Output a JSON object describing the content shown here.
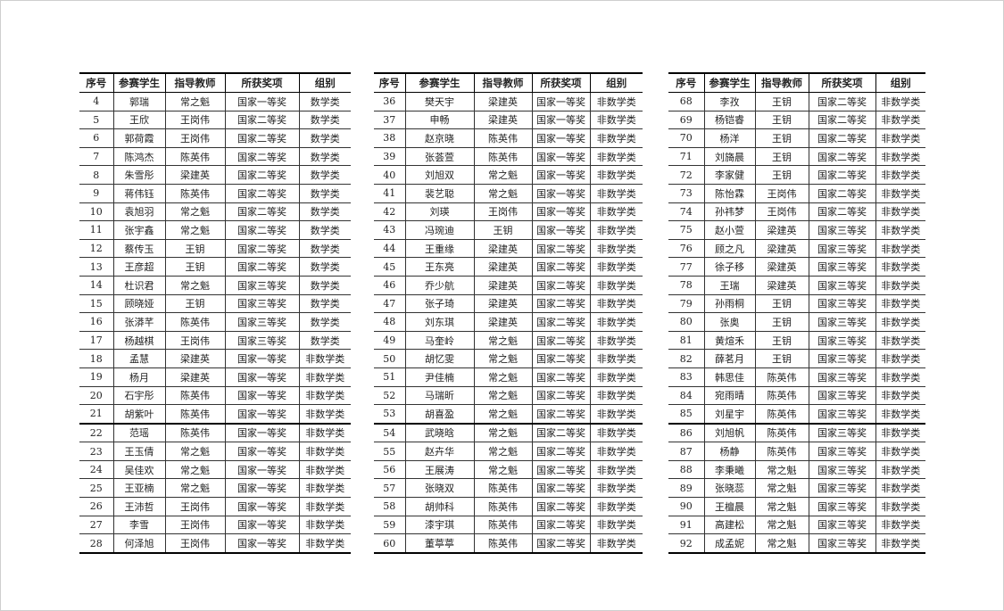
{
  "headers": [
    "序号",
    "参赛学生",
    "指导教师",
    "所获奖项",
    "组别"
  ],
  "tables": [
    {
      "rows": [
        [
          "4",
          "郭瑞",
          "常之魁",
          "国家一等奖",
          "数学类"
        ],
        [
          "5",
          "王欣",
          "王岗伟",
          "国家二等奖",
          "数学类"
        ],
        [
          "6",
          "郭荷霞",
          "王岗伟",
          "国家二等奖",
          "数学类"
        ],
        [
          "7",
          "陈鸿杰",
          "陈英伟",
          "国家二等奖",
          "数学类"
        ],
        [
          "8",
          "朱雪彤",
          "梁建英",
          "国家二等奖",
          "数学类"
        ],
        [
          "9",
          "蒋伟钰",
          "陈英伟",
          "国家二等奖",
          "数学类"
        ],
        [
          "10",
          "袁旭羽",
          "常之魁",
          "国家二等奖",
          "数学类"
        ],
        [
          "11",
          "张宇鑫",
          "常之魁",
          "国家二等奖",
          "数学类"
        ],
        [
          "12",
          "蔡传玉",
          "王钥",
          "国家二等奖",
          "数学类"
        ],
        [
          "13",
          "王彦超",
          "王钥",
          "国家二等奖",
          "数学类"
        ],
        [
          "14",
          "杜识君",
          "常之魁",
          "国家三等奖",
          "数学类"
        ],
        [
          "15",
          "顾晓娅",
          "王钥",
          "国家三等奖",
          "数学类"
        ],
        [
          "16",
          "张漭芊",
          "陈英伟",
          "国家三等奖",
          "数学类"
        ],
        [
          "17",
          "杨越棋",
          "王岗伟",
          "国家三等奖",
          "数学类"
        ],
        [
          "18",
          "孟慧",
          "梁建英",
          "国家一等奖",
          "非数学类"
        ],
        [
          "19",
          "杨月",
          "梁建英",
          "国家一等奖",
          "非数学类"
        ],
        [
          "20",
          "石宇彤",
          "陈英伟",
          "国家一等奖",
          "非数学类"
        ],
        [
          "21",
          "胡紫叶",
          "陈英伟",
          "国家一等奖",
          "非数学类"
        ],
        [
          "22",
          "范瑶",
          "陈英伟",
          "国家一等奖",
          "非数学类"
        ],
        [
          "23",
          "王玉倩",
          "常之魁",
          "国家一等奖",
          "非数学类"
        ],
        [
          "24",
          "吴佳欢",
          "常之魁",
          "国家一等奖",
          "非数学类"
        ],
        [
          "25",
          "王亚楠",
          "常之魁",
          "国家一等奖",
          "非数学类"
        ],
        [
          "26",
          "王沛哲",
          "王岗伟",
          "国家一等奖",
          "非数学类"
        ],
        [
          "27",
          "李雪",
          "王岗伟",
          "国家一等奖",
          "非数学类"
        ],
        [
          "28",
          "何泽旭",
          "王岗伟",
          "国家一等奖",
          "非数学类"
        ]
      ]
    },
    {
      "rows": [
        [
          "36",
          "樊天宇",
          "梁建英",
          "国家一等奖",
          "非数学类"
        ],
        [
          "37",
          "申畅",
          "梁建英",
          "国家一等奖",
          "非数学类"
        ],
        [
          "38",
          "赵京晓",
          "陈英伟",
          "国家一等奖",
          "非数学类"
        ],
        [
          "39",
          "张荟萱",
          "陈英伟",
          "国家一等奖",
          "非数学类"
        ],
        [
          "40",
          "刘旭双",
          "常之魁",
          "国家一等奖",
          "非数学类"
        ],
        [
          "41",
          "裴艺聪",
          "常之魁",
          "国家一等奖",
          "非数学类"
        ],
        [
          "42",
          "刘瑛",
          "王岗伟",
          "国家一等奖",
          "非数学类"
        ],
        [
          "43",
          "冯琬迪",
          "王钥",
          "国家一等奖",
          "非数学类"
        ],
        [
          "44",
          "王重缘",
          "梁建英",
          "国家二等奖",
          "非数学类"
        ],
        [
          "45",
          "王东亮",
          "梁建英",
          "国家二等奖",
          "非数学类"
        ],
        [
          "46",
          "乔少航",
          "梁建英",
          "国家二等奖",
          "非数学类"
        ],
        [
          "47",
          "张子琦",
          "梁建英",
          "国家二等奖",
          "非数学类"
        ],
        [
          "48",
          "刘东琪",
          "梁建英",
          "国家二等奖",
          "非数学类"
        ],
        [
          "49",
          "马奎岭",
          "常之魁",
          "国家二等奖",
          "非数学类"
        ],
        [
          "50",
          "胡忆雯",
          "常之魁",
          "国家二等奖",
          "非数学类"
        ],
        [
          "51",
          "尹佳楠",
          "常之魁",
          "国家二等奖",
          "非数学类"
        ],
        [
          "52",
          "马瑞昕",
          "常之魁",
          "国家二等奖",
          "非数学类"
        ],
        [
          "53",
          "胡喜盈",
          "常之魁",
          "国家二等奖",
          "非数学类"
        ],
        [
          "54",
          "武晓晗",
          "常之魁",
          "国家二等奖",
          "非数学类"
        ],
        [
          "55",
          "赵卉华",
          "常之魁",
          "国家二等奖",
          "非数学类"
        ],
        [
          "56",
          "王展涛",
          "常之魁",
          "国家二等奖",
          "非数学类"
        ],
        [
          "57",
          "张晓双",
          "陈英伟",
          "国家二等奖",
          "非数学类"
        ],
        [
          "58",
          "胡帅科",
          "陈英伟",
          "国家二等奖",
          "非数学类"
        ],
        [
          "59",
          "漆宇琪",
          "陈英伟",
          "国家二等奖",
          "非数学类"
        ],
        [
          "60",
          "董葶葶",
          "陈英伟",
          "国家二等奖",
          "非数学类"
        ]
      ]
    },
    {
      "rows": [
        [
          "68",
          "李孜",
          "王钥",
          "国家二等奖",
          "非数学类"
        ],
        [
          "69",
          "杨铠睿",
          "王钥",
          "国家二等奖",
          "非数学类"
        ],
        [
          "70",
          "杨洋",
          "王钥",
          "国家二等奖",
          "非数学类"
        ],
        [
          "71",
          "刘旖晨",
          "王钥",
          "国家二等奖",
          "非数学类"
        ],
        [
          "72",
          "李家健",
          "王钥",
          "国家二等奖",
          "非数学类"
        ],
        [
          "73",
          "陈怡霖",
          "王岗伟",
          "国家二等奖",
          "非数学类"
        ],
        [
          "74",
          "孙祎梦",
          "王岗伟",
          "国家二等奖",
          "非数学类"
        ],
        [
          "75",
          "赵小萱",
          "梁建英",
          "国家三等奖",
          "非数学类"
        ],
        [
          "76",
          "顾之凡",
          "梁建英",
          "国家三等奖",
          "非数学类"
        ],
        [
          "77",
          "徐子移",
          "梁建英",
          "国家三等奖",
          "非数学类"
        ],
        [
          "78",
          "王瑞",
          "梁建英",
          "国家三等奖",
          "非数学类"
        ],
        [
          "79",
          "孙雨桐",
          "王钥",
          "国家三等奖",
          "非数学类"
        ],
        [
          "80",
          "张奥",
          "王钥",
          "国家三等奖",
          "非数学类"
        ],
        [
          "81",
          "黄煊禾",
          "王钥",
          "国家三等奖",
          "非数学类"
        ],
        [
          "82",
          "薛茗月",
          "王钥",
          "国家三等奖",
          "非数学类"
        ],
        [
          "83",
          "韩思佳",
          "陈英伟",
          "国家三等奖",
          "非数学类"
        ],
        [
          "84",
          "宛雨晴",
          "陈英伟",
          "国家三等奖",
          "非数学类"
        ],
        [
          "85",
          "刘星宇",
          "陈英伟",
          "国家三等奖",
          "非数学类"
        ],
        [
          "86",
          "刘旭帆",
          "陈英伟",
          "国家三等奖",
          "非数学类"
        ],
        [
          "87",
          "杨静",
          "陈英伟",
          "国家三等奖",
          "非数学类"
        ],
        [
          "88",
          "李秉曦",
          "常之魁",
          "国家三等奖",
          "非数学类"
        ],
        [
          "89",
          "张晓蕊",
          "常之魁",
          "国家三等奖",
          "非数学类"
        ],
        [
          "90",
          "王檀晨",
          "常之魁",
          "国家三等奖",
          "非数学类"
        ],
        [
          "91",
          "高建松",
          "常之魁",
          "国家三等奖",
          "非数学类"
        ],
        [
          "92",
          "成孟妮",
          "常之魁",
          "国家三等奖",
          "非数学类"
        ]
      ]
    }
  ]
}
